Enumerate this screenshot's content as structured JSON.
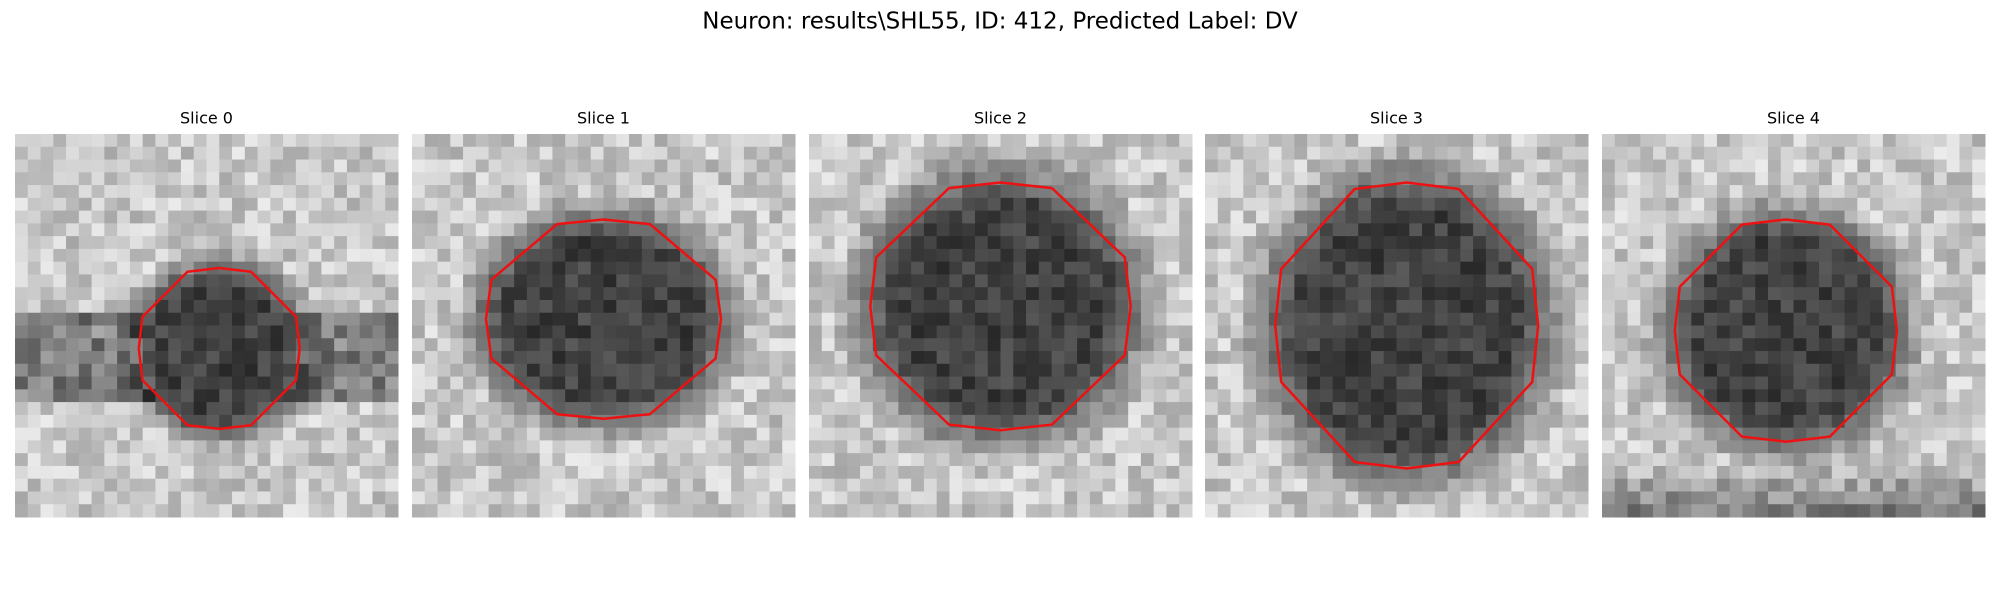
{
  "title": "Neuron: results\\SHL55, ID: 412, Predicted Label: DV",
  "panels": [
    {
      "title": "Slice 0"
    },
    {
      "title": "Slice 1"
    },
    {
      "title": "Slice 2"
    },
    {
      "title": "Slice 3"
    },
    {
      "title": "Slice 4"
    }
  ]
}
